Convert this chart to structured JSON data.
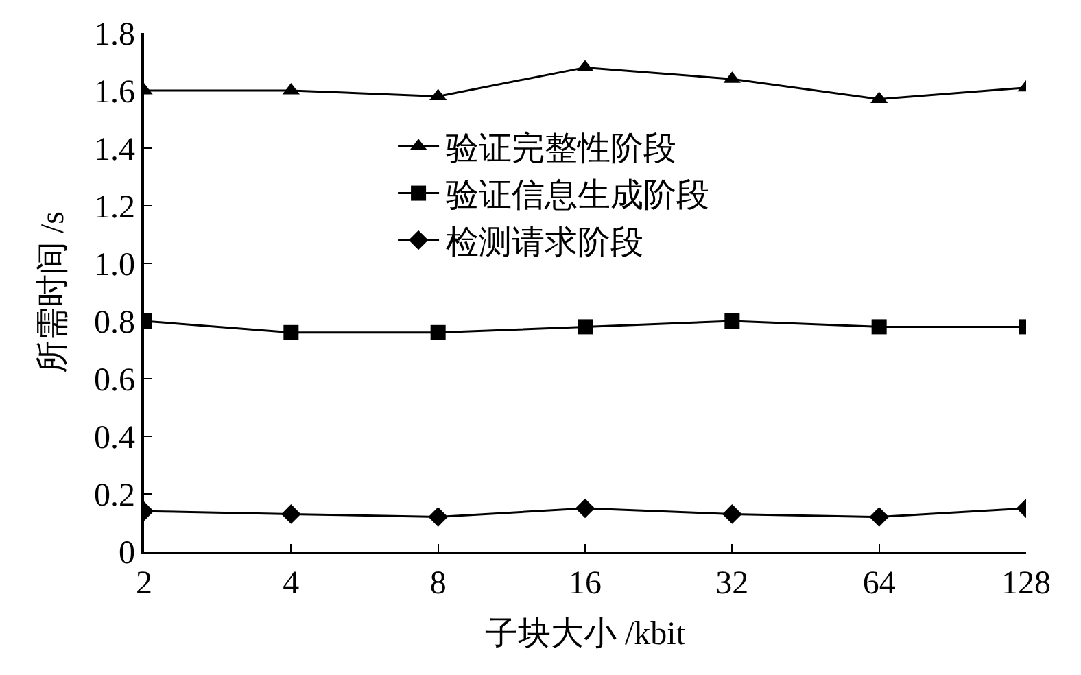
{
  "chart_data": {
    "type": "line",
    "xlabel": "子块大小 /kbit",
    "ylabel": "所需时间 /s",
    "categories": [
      "2",
      "4",
      "8",
      "16",
      "32",
      "64",
      "128"
    ],
    "ylim": [
      0,
      1.8
    ],
    "yticks": [
      0,
      0.2,
      0.4,
      0.6,
      0.8,
      {
        "value": 1.0,
        "label": "1.0"
      },
      1.2,
      1.4,
      1.6,
      1.8
    ],
    "legend": "top",
    "line_style": "solid",
    "series": [
      {
        "name": "验证完整性阶段",
        "color": "#000000",
        "marker": "triangle",
        "values": [
          1.6,
          1.6,
          1.58,
          1.68,
          1.64,
          1.57,
          1.61
        ]
      },
      {
        "name": "验证信息生成阶段",
        "color": "#000000",
        "marker": "square",
        "values": [
          0.8,
          0.76,
          0.76,
          0.78,
          0.8,
          0.78,
          0.78
        ]
      },
      {
        "name": "检测请求阶段",
        "color": "#000000",
        "marker": "diamond",
        "values": [
          0.14,
          0.13,
          0.12,
          0.15,
          0.13,
          0.12,
          0.15
        ]
      }
    ]
  }
}
